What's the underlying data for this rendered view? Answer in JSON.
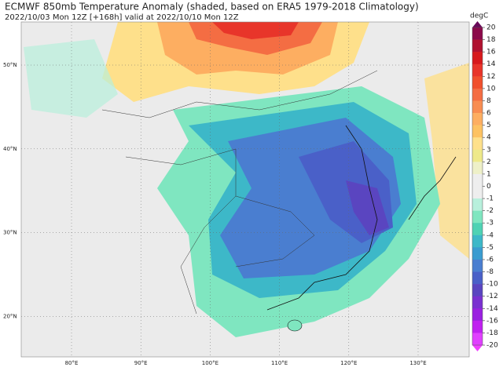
{
  "header": {
    "title": "ECMWF 850mb Temperature Anomaly (shaded, based on ERA5 1979-2018 Climatology)",
    "subtitle": "2022/10/03 Mon 12Z [+168h] valid at 2022/10/10 Mon 12Z"
  },
  "map": {
    "lat_ticks": [
      {
        "value": 50,
        "label": "50°N"
      },
      {
        "value": 40,
        "label": "40°N"
      },
      {
        "value": 30,
        "label": "30°N"
      },
      {
        "value": 20,
        "label": "20°N"
      }
    ],
    "lon_ticks": [
      {
        "value": 80,
        "label": "80°E"
      },
      {
        "value": 90,
        "label": "90°E"
      },
      {
        "value": 100,
        "label": "100°E"
      },
      {
        "value": 110,
        "label": "110°E"
      },
      {
        "value": 120,
        "label": "120°E"
      },
      {
        "value": 130,
        "label": "130°E"
      }
    ]
  },
  "colorbar": {
    "unit": "degC",
    "levels": [
      20,
      18,
      16,
      14,
      12,
      10,
      8,
      6,
      5,
      4,
      3,
      2,
      1,
      0,
      -1,
      -2,
      -3,
      -4,
      -5,
      -6,
      -8,
      -10,
      -12,
      -14,
      -16,
      -18,
      -20
    ],
    "colors": [
      "#8c0a4b",
      "#b0122f",
      "#d7191c",
      "#e8352a",
      "#f0502d",
      "#f46d43",
      "#f88d52",
      "#fdae61",
      "#fdc262",
      "#fee08b",
      "#eee98a",
      "#eef0c8",
      "#eeeeee",
      "#eeeeee",
      "#b8f0dc",
      "#7fe6c0",
      "#4fd2b4",
      "#3db8c8",
      "#3a9cd0",
      "#4a7ed0",
      "#4a60c8",
      "#5a45c0",
      "#7a30d0",
      "#9a20e0",
      "#c020f0",
      "#e040ff"
    ],
    "extend_colors": [
      "#6a0a5a",
      "#f040ff"
    ]
  }
}
